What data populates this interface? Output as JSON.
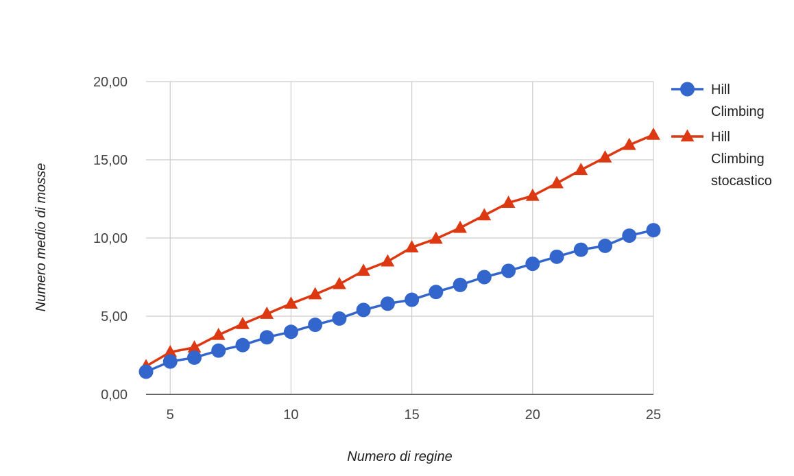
{
  "chart_data": {
    "type": "line",
    "title": "",
    "xlabel": "Numero di regine",
    "ylabel": "Numero medio di mosse",
    "xlim": [
      4,
      25
    ],
    "ylim": [
      0,
      20
    ],
    "x_ticks": [
      5,
      10,
      15,
      20,
      25
    ],
    "x_tick_labels": [
      "5",
      "10",
      "15",
      "20",
      "25"
    ],
    "y_ticks": [
      0,
      5,
      10,
      15,
      20
    ],
    "y_tick_labels": [
      "0,00",
      "5,00",
      "10,00",
      "15,00",
      "20,00"
    ],
    "grid": true,
    "legend_position": "right",
    "x": [
      4,
      5,
      6,
      7,
      8,
      9,
      10,
      11,
      12,
      13,
      14,
      15,
      16,
      17,
      18,
      19,
      20,
      21,
      22,
      23,
      24,
      25
    ],
    "series": [
      {
        "name": "Hill Climbing",
        "legend_lines": [
          "Hill",
          "Climbing"
        ],
        "color": "#3366cc",
        "marker": "circle",
        "values": [
          1.45,
          2.1,
          2.35,
          2.8,
          3.15,
          3.65,
          4.0,
          4.45,
          4.85,
          5.4,
          5.8,
          6.05,
          6.55,
          7.0,
          7.5,
          7.9,
          8.35,
          8.8,
          9.25,
          9.5,
          10.15,
          10.5
        ]
      },
      {
        "name": "Hill Climbing stocastico",
        "legend_lines": [
          "Hill",
          "Climbing",
          "stocastico"
        ],
        "color": "#dc3912",
        "marker": "triangle",
        "values": [
          1.8,
          2.7,
          3.0,
          3.8,
          4.5,
          5.15,
          5.8,
          6.4,
          7.05,
          7.9,
          8.5,
          9.4,
          9.95,
          10.65,
          11.45,
          12.25,
          12.7,
          13.5,
          14.35,
          15.15,
          15.95,
          16.6
        ]
      }
    ]
  }
}
